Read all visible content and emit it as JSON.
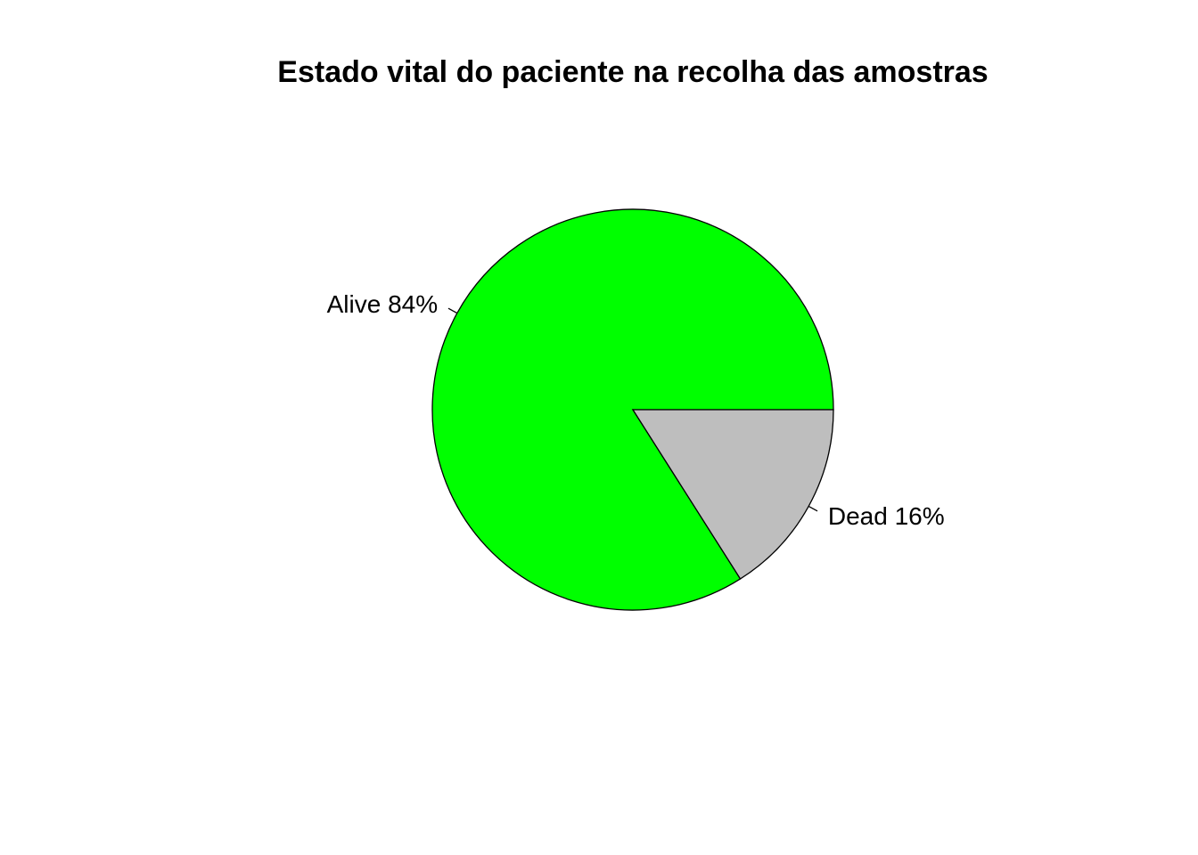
{
  "chart_data": {
    "type": "pie",
    "title": "Estado vital do paciente na recolha das amostras",
    "slices": [
      {
        "label": "Alive 84%",
        "category": "Alive",
        "value": 84,
        "color": "#00ff00"
      },
      {
        "label": "Dead 16%",
        "category": "Dead",
        "value": 16,
        "color": "#bebebe"
      }
    ],
    "start_angle_deg": 0,
    "direction": "counterclockwise",
    "legend": "none"
  }
}
